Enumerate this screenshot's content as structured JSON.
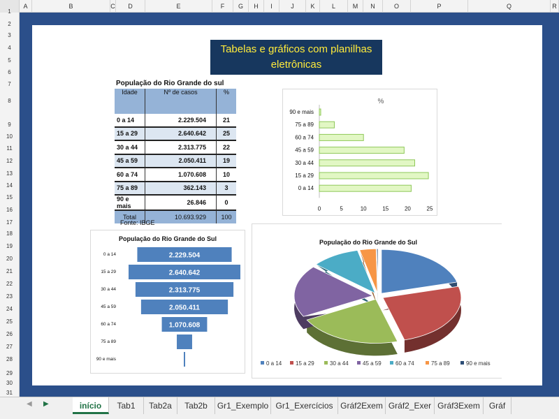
{
  "columns": [
    "A",
    "B",
    "C",
    "D",
    "E",
    "F",
    "G",
    "H",
    "I",
    "J",
    "K",
    "L",
    "M",
    "N",
    "O",
    "P",
    "Q",
    "R"
  ],
  "rows": [
    "1",
    "2",
    "3",
    "4",
    "5",
    "6",
    "7",
    "8",
    "9",
    "10",
    "11",
    "12",
    "13",
    "14",
    "15",
    "16",
    "17",
    "18",
    "19",
    "20",
    "21",
    "22",
    "23",
    "24",
    "25",
    "26",
    "27",
    "28",
    "29",
    "30",
    "31"
  ],
  "title_line1": "Tabelas e gráficos com planilhas",
  "title_line2": "eletrônicas",
  "table": {
    "title": "População do Rio Grande do sul",
    "headers": [
      "Idade",
      "Nº de casos",
      "%"
    ],
    "rows": [
      {
        "age": "0 a 14",
        "cases": "2.229.504",
        "pct": "21"
      },
      {
        "age": "15 a 29",
        "cases": "2.640.642",
        "pct": "25"
      },
      {
        "age": "30 a 44",
        "cases": "2.313.775",
        "pct": "22"
      },
      {
        "age": "45 a 59",
        "cases": "2.050.411",
        "pct": "19"
      },
      {
        "age": "60 a 74",
        "cases": "1.070.608",
        "pct": "10"
      },
      {
        "age": "75 a 89",
        "cases": "362.143",
        "pct": "3"
      },
      {
        "age": "90 e mais",
        "cases": "26.846",
        "pct": "0"
      }
    ],
    "total_label": "Total",
    "total_cases": "10.693.929",
    "total_pct": "100",
    "source": "Fonte: IBGE"
  },
  "chart_data": [
    {
      "type": "bar",
      "orientation": "horizontal",
      "title": "%",
      "categories": [
        "0 a 14",
        "15 a 29",
        "30 a 44",
        "45 a 59",
        "60 a 74",
        "75 a 89",
        "90 e mais"
      ],
      "values": [
        20.8,
        24.7,
        21.6,
        19.2,
        10.0,
        3.4,
        0.3
      ],
      "xlim": [
        0,
        25
      ],
      "xticks": [
        "0",
        "5",
        "10",
        "15",
        "20",
        "25"
      ],
      "bar_color": "#e2f7c4",
      "bar_border": "#8fc85a"
    },
    {
      "type": "bar",
      "orientation": "horizontal-centered",
      "title": "População do Rio Grande do Sul",
      "categories": [
        "0 a 14",
        "15 a 29",
        "30 a 44",
        "45 a 59",
        "60 a 74",
        "75 a 89",
        "90 e mais"
      ],
      "values": [
        2229504,
        2640642,
        2313775,
        2050411,
        1070608,
        362143,
        26846
      ],
      "labels": [
        "2.229.504",
        "2.640.642",
        "2.313.775",
        "2.050.411",
        "1.070.608",
        "",
        ""
      ],
      "bar_color": "#4f81bd"
    },
    {
      "type": "pie",
      "title": "População do Rio Grande do Sul",
      "categories": [
        "0 a 14",
        "15 a 29",
        "30 a 44",
        "45 a 59",
        "60 a 74",
        "75 a 89",
        "90 e mais"
      ],
      "values": [
        2229504,
        2640642,
        2313775,
        2050411,
        1070608,
        362143,
        26846
      ],
      "colors": [
        "#4f81bd",
        "#c0504d",
        "#9bbb59",
        "#8064a2",
        "#4bacc6",
        "#f79646",
        "#2c4d75"
      ],
      "legend": "bottom"
    }
  ],
  "sheet_tabs": [
    "início",
    "Tab1",
    "Tab2a",
    "Tab2b",
    "Gr1_Exemplo",
    "Gr1_Exercícios",
    "Gráf2Exem",
    "Gráf2_Exer",
    "Gráf3Exem",
    "Gráf"
  ],
  "active_tab": "início"
}
